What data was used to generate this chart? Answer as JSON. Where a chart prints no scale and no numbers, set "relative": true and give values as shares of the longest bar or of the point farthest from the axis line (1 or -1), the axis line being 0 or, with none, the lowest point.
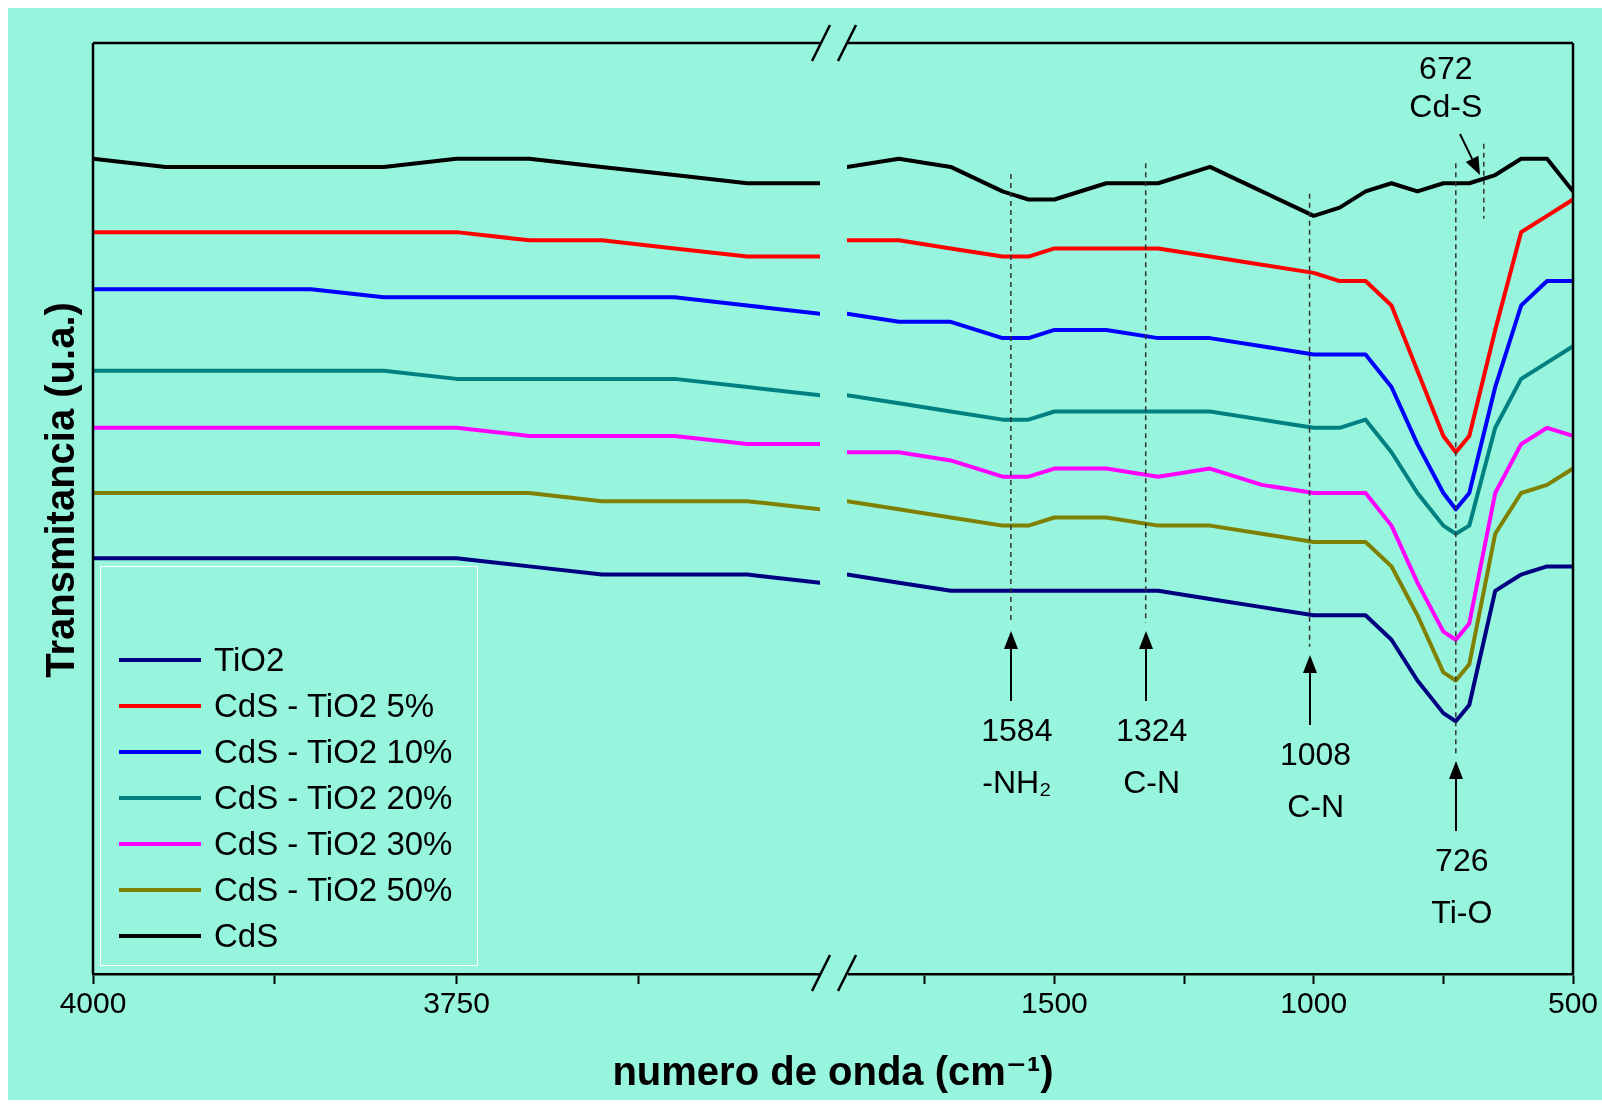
{
  "chart_data": [
    {
      "type": "line",
      "ylabel": "Transmitancia (u.a.)",
      "relative": true,
      "tick_labels": "x",
      "legend": "bottom left",
      "marker": "none",
      "xlim": [
        4000,
        3500
      ],
      "xticks": [
        4000,
        3750,
        {
          "value": 3875,
          "label": null
        },
        {
          "value": 3625,
          "label": null
        }
      ],
      "series": [
        {
          "name": "TiO2",
          "color": "#000080",
          "x": [
            4000,
            3950,
            3900,
            3850,
            3800,
            3750,
            3700,
            3650,
            3600,
            3550,
            3500
          ],
          "values": [
            0.51,
            0.51,
            0.51,
            0.51,
            0.51,
            0.51,
            0.5,
            0.49,
            0.49,
            0.49,
            0.48
          ]
        },
        {
          "name": "CdS - TiO2 5%",
          "color": "#ff0000",
          "x": [
            4000,
            3950,
            3900,
            3850,
            3800,
            3750,
            3700,
            3650,
            3600,
            3550,
            3500
          ],
          "values": [
            0.91,
            0.91,
            0.91,
            0.91,
            0.91,
            0.91,
            0.9,
            0.9,
            0.89,
            0.88,
            0.88
          ]
        },
        {
          "name": "CdS - TiO2 10%",
          "color": "#0000ff",
          "x": [
            4000,
            3950,
            3900,
            3850,
            3800,
            3750,
            3700,
            3650,
            3600,
            3550,
            3500
          ],
          "values": [
            0.84,
            0.84,
            0.84,
            0.84,
            0.83,
            0.83,
            0.83,
            0.83,
            0.83,
            0.82,
            0.81
          ]
        },
        {
          "name": "CdS - TiO2 20%",
          "color": "#008080",
          "x": [
            4000,
            3950,
            3900,
            3850,
            3800,
            3750,
            3700,
            3650,
            3600,
            3550,
            3500
          ],
          "values": [
            0.74,
            0.74,
            0.74,
            0.74,
            0.74,
            0.73,
            0.73,
            0.73,
            0.73,
            0.72,
            0.71
          ]
        },
        {
          "name": "CdS - TiO2 30%",
          "color": "#ff00ff",
          "x": [
            4000,
            3950,
            3900,
            3850,
            3800,
            3750,
            3700,
            3650,
            3600,
            3550,
            3500
          ],
          "values": [
            0.67,
            0.67,
            0.67,
            0.67,
            0.67,
            0.67,
            0.66,
            0.66,
            0.66,
            0.65,
            0.65
          ]
        },
        {
          "name": "CdS - TiO2 50%",
          "color": "#808000",
          "x": [
            4000,
            3950,
            3900,
            3850,
            3800,
            3750,
            3700,
            3650,
            3600,
            3550,
            3500
          ],
          "values": [
            0.59,
            0.59,
            0.59,
            0.59,
            0.59,
            0.59,
            0.59,
            0.58,
            0.58,
            0.58,
            0.57
          ]
        },
        {
          "name": "CdS",
          "color": "#000000",
          "x": [
            4000,
            3950,
            3900,
            3850,
            3800,
            3750,
            3700,
            3650,
            3600,
            3550,
            3500
          ],
          "values": [
            1.0,
            0.99,
            0.99,
            0.99,
            0.99,
            1.0,
            1.0,
            0.99,
            0.98,
            0.97,
            0.97
          ]
        }
      ]
    },
    {
      "type": "line",
      "xlabel": "numero de onda (cm⁻¹)",
      "relative": true,
      "tick_labels": "x",
      "marker": "none",
      "xlim": [
        1900,
        500
      ],
      "xticks": [
        1500,
        1000,
        500,
        {
          "value": 1750,
          "label": null
        },
        {
          "value": 1250,
          "label": null
        },
        {
          "value": 750,
          "label": null
        }
      ],
      "ref_lines": [
        {
          "axis": "x",
          "value": 1584,
          "label": "1584\n-NH₂"
        },
        {
          "axis": "x",
          "value": 1324,
          "label": "1324\nC-N"
        },
        {
          "axis": "x",
          "value": 1008,
          "label": "1008\nC-N"
        },
        {
          "axis": "x",
          "value": 726,
          "label": "726\nTi-O"
        },
        {
          "axis": "x",
          "value": 672,
          "label": "672\nCd-S"
        }
      ],
      "series": [
        {
          "color": "#000080",
          "x": [
            1900,
            1800,
            1700,
            1600,
            1550,
            1500,
            1400,
            1300,
            1200,
            1100,
            1000,
            950,
            900,
            850,
            800,
            750,
            726,
            700,
            650,
            600,
            550,
            500
          ],
          "values": [
            0.49,
            0.48,
            0.47,
            0.47,
            0.47,
            0.47,
            0.47,
            0.47,
            0.46,
            0.45,
            0.44,
            0.44,
            0.44,
            0.41,
            0.36,
            0.32,
            0.31,
            0.33,
            0.47,
            0.49,
            0.5,
            0.5
          ]
        },
        {
          "color": "#ff0000",
          "x": [
            1900,
            1800,
            1700,
            1600,
            1550,
            1500,
            1400,
            1300,
            1200,
            1100,
            1000,
            950,
            900,
            850,
            800,
            750,
            726,
            700,
            650,
            600,
            550,
            500
          ],
          "values": [
            0.9,
            0.9,
            0.89,
            0.88,
            0.88,
            0.89,
            0.89,
            0.89,
            0.88,
            0.87,
            0.86,
            0.85,
            0.85,
            0.82,
            0.74,
            0.66,
            0.64,
            0.66,
            0.79,
            0.91,
            0.93,
            0.95
          ]
        },
        {
          "color": "#0000ff",
          "x": [
            1900,
            1800,
            1700,
            1600,
            1550,
            1500,
            1400,
            1300,
            1200,
            1100,
            1000,
            950,
            900,
            850,
            800,
            750,
            726,
            700,
            650,
            600,
            550,
            500
          ],
          "values": [
            0.81,
            0.8,
            0.8,
            0.78,
            0.78,
            0.79,
            0.79,
            0.78,
            0.78,
            0.77,
            0.76,
            0.76,
            0.76,
            0.72,
            0.65,
            0.59,
            0.57,
            0.59,
            0.72,
            0.82,
            0.85,
            0.85
          ]
        },
        {
          "color": "#008080",
          "x": [
            1900,
            1800,
            1700,
            1600,
            1550,
            1500,
            1400,
            1300,
            1200,
            1100,
            1000,
            950,
            900,
            850,
            800,
            750,
            726,
            700,
            650,
            600,
            550,
            500
          ],
          "values": [
            0.71,
            0.7,
            0.69,
            0.68,
            0.68,
            0.69,
            0.69,
            0.69,
            0.69,
            0.68,
            0.67,
            0.67,
            0.68,
            0.64,
            0.59,
            0.55,
            0.54,
            0.55,
            0.67,
            0.73,
            0.75,
            0.77
          ]
        },
        {
          "color": "#ff00ff",
          "x": [
            1900,
            1800,
            1700,
            1600,
            1550,
            1500,
            1400,
            1300,
            1200,
            1100,
            1000,
            950,
            900,
            850,
            800,
            750,
            726,
            700,
            650,
            600,
            550,
            500
          ],
          "values": [
            0.64,
            0.64,
            0.63,
            0.61,
            0.61,
            0.62,
            0.62,
            0.61,
            0.62,
            0.6,
            0.59,
            0.59,
            0.59,
            0.55,
            0.48,
            0.42,
            0.41,
            0.43,
            0.59,
            0.65,
            0.67,
            0.66
          ]
        },
        {
          "color": "#808000",
          "x": [
            1900,
            1800,
            1700,
            1600,
            1550,
            1500,
            1400,
            1300,
            1200,
            1100,
            1000,
            950,
            900,
            850,
            800,
            750,
            726,
            700,
            650,
            600,
            550,
            500
          ],
          "values": [
            0.58,
            0.57,
            0.56,
            0.55,
            0.55,
            0.56,
            0.56,
            0.55,
            0.55,
            0.54,
            0.53,
            0.53,
            0.53,
            0.5,
            0.44,
            0.37,
            0.36,
            0.38,
            0.54,
            0.59,
            0.6,
            0.62
          ]
        },
        {
          "color": "#000000",
          "x": [
            1900,
            1800,
            1700,
            1600,
            1550,
            1500,
            1400,
            1300,
            1200,
            1100,
            1000,
            950,
            900,
            850,
            800,
            750,
            726,
            700,
            650,
            600,
            550,
            500
          ],
          "values": [
            0.99,
            1.0,
            0.99,
            0.96,
            0.95,
            0.95,
            0.97,
            0.97,
            0.99,
            0.96,
            0.93,
            0.94,
            0.96,
            0.97,
            0.96,
            0.97,
            0.97,
            0.97,
            0.98,
            1.0,
            1.0,
            0.96
          ]
        }
      ]
    }
  ]
}
